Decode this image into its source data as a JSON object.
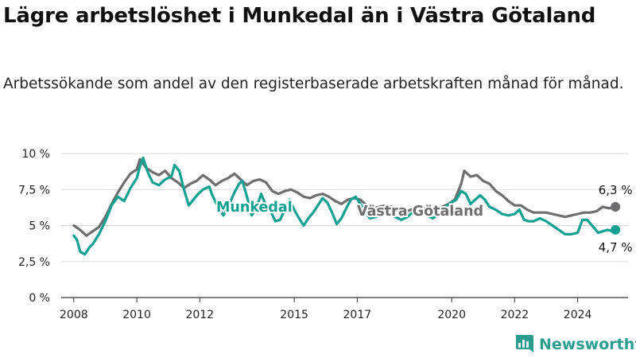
{
  "header": {
    "title": "Lägre arbetslöshet i Munkedal än i Västra Götaland",
    "subtitle": "Arbetssökande som andel av den registerbaserade arbetskraften månad för månad."
  },
  "brand": {
    "name": "Newsworthy",
    "icon": "bar-chart-icon",
    "color": "#2a9d8f"
  },
  "chart_data": {
    "type": "line",
    "ylim": [
      0,
      10
    ],
    "y_ticks": [
      {
        "value": 0,
        "label": "0 %"
      },
      {
        "value": 2.5,
        "label": "2,5 %"
      },
      {
        "value": 5,
        "label": "5 %"
      },
      {
        "value": 7.5,
        "label": "7,5 %"
      },
      {
        "value": 10,
        "label": "10 %"
      }
    ],
    "xlim": [
      2007.6,
      2025.6
    ],
    "x_ticks": [
      {
        "value": 2008,
        "label": "2008"
      },
      {
        "value": 2010,
        "label": "2010"
      },
      {
        "value": 2012,
        "label": "2012"
      },
      {
        "value": 2015,
        "label": "2015"
      },
      {
        "value": 2017,
        "label": "2017"
      },
      {
        "value": 2020,
        "label": "2020"
      },
      {
        "value": 2022,
        "label": "2022"
      },
      {
        "value": 2024,
        "label": "2024"
      }
    ],
    "grid": true,
    "series": [
      {
        "name": "Västra Götaland",
        "color": "#6e6e70",
        "end_label": "6,3 %",
        "points": [
          [
            2008.0,
            5.0
          ],
          [
            2008.2,
            4.7
          ],
          [
            2008.4,
            4.3
          ],
          [
            2008.6,
            4.6
          ],
          [
            2008.8,
            4.9
          ],
          [
            2009.0,
            5.6
          ],
          [
            2009.2,
            6.5
          ],
          [
            2009.4,
            7.3
          ],
          [
            2009.6,
            8.0
          ],
          [
            2009.8,
            8.6
          ],
          [
            2010.0,
            8.9
          ],
          [
            2010.1,
            9.6
          ],
          [
            2010.3,
            9.0
          ],
          [
            2010.5,
            8.7
          ],
          [
            2010.7,
            8.5
          ],
          [
            2010.9,
            8.8
          ],
          [
            2011.1,
            8.3
          ],
          [
            2011.3,
            8.0
          ],
          [
            2011.5,
            7.6
          ],
          [
            2011.7,
            7.9
          ],
          [
            2011.9,
            8.1
          ],
          [
            2012.1,
            8.5
          ],
          [
            2012.3,
            8.2
          ],
          [
            2012.5,
            7.8
          ],
          [
            2012.7,
            8.1
          ],
          [
            2012.9,
            8.3
          ],
          [
            2013.1,
            8.6
          ],
          [
            2013.3,
            8.2
          ],
          [
            2013.5,
            7.8
          ],
          [
            2013.7,
            8.1
          ],
          [
            2013.9,
            8.2
          ],
          [
            2014.1,
            8.0
          ],
          [
            2014.3,
            7.4
          ],
          [
            2014.5,
            7.2
          ],
          [
            2014.7,
            7.4
          ],
          [
            2014.9,
            7.5
          ],
          [
            2015.1,
            7.3
          ],
          [
            2015.3,
            7.0
          ],
          [
            2015.5,
            6.9
          ],
          [
            2015.7,
            7.1
          ],
          [
            2015.9,
            7.2
          ],
          [
            2016.1,
            7.0
          ],
          [
            2016.3,
            6.7
          ],
          [
            2016.5,
            6.5
          ],
          [
            2016.7,
            6.8
          ],
          [
            2016.9,
            6.9
          ],
          [
            2017.1,
            6.8
          ],
          [
            2017.3,
            6.4
          ],
          [
            2017.5,
            6.2
          ],
          [
            2017.7,
            6.3
          ],
          [
            2017.9,
            6.4
          ],
          [
            2018.1,
            6.3
          ],
          [
            2018.3,
            6.0
          ],
          [
            2018.5,
            5.9
          ],
          [
            2018.7,
            6.1
          ],
          [
            2018.9,
            6.2
          ],
          [
            2019.1,
            6.2
          ],
          [
            2019.3,
            6.2
          ],
          [
            2019.5,
            6.1
          ],
          [
            2019.7,
            6.3
          ],
          [
            2019.9,
            6.5
          ],
          [
            2020.1,
            6.8
          ],
          [
            2020.3,
            7.9
          ],
          [
            2020.4,
            8.8
          ],
          [
            2020.6,
            8.4
          ],
          [
            2020.8,
            8.5
          ],
          [
            2021.0,
            8.1
          ],
          [
            2021.2,
            7.9
          ],
          [
            2021.4,
            7.4
          ],
          [
            2021.6,
            7.1
          ],
          [
            2021.8,
            6.7
          ],
          [
            2022.0,
            6.4
          ],
          [
            2022.2,
            6.4
          ],
          [
            2022.4,
            6.1
          ],
          [
            2022.6,
            5.9
          ],
          [
            2022.8,
            5.9
          ],
          [
            2023.0,
            5.9
          ],
          [
            2023.2,
            5.8
          ],
          [
            2023.4,
            5.7
          ],
          [
            2023.6,
            5.6
          ],
          [
            2023.8,
            5.7
          ],
          [
            2024.0,
            5.8
          ],
          [
            2024.2,
            5.9
          ],
          [
            2024.4,
            5.9
          ],
          [
            2024.6,
            6.0
          ],
          [
            2024.8,
            6.3
          ],
          [
            2025.0,
            6.2
          ],
          [
            2025.2,
            6.3
          ]
        ]
      },
      {
        "name": "Munkedal",
        "color": "#14a192",
        "end_label": "4,7 %",
        "points": [
          [
            2008.0,
            4.3
          ],
          [
            2008.1,
            4.0
          ],
          [
            2008.2,
            3.2
          ],
          [
            2008.35,
            3.0
          ],
          [
            2008.5,
            3.5
          ],
          [
            2008.6,
            3.7
          ],
          [
            2008.8,
            4.4
          ],
          [
            2009.0,
            5.3
          ],
          [
            2009.2,
            6.4
          ],
          [
            2009.4,
            7.0
          ],
          [
            2009.6,
            6.7
          ],
          [
            2009.8,
            7.6
          ],
          [
            2010.0,
            8.3
          ],
          [
            2010.1,
            9.1
          ],
          [
            2010.2,
            9.7
          ],
          [
            2010.35,
            8.7
          ],
          [
            2010.5,
            8.0
          ],
          [
            2010.7,
            7.8
          ],
          [
            2010.9,
            8.2
          ],
          [
            2011.1,
            8.4
          ],
          [
            2011.2,
            9.2
          ],
          [
            2011.35,
            8.8
          ],
          [
            2011.5,
            7.5
          ],
          [
            2011.65,
            6.4
          ],
          [
            2011.8,
            6.8
          ],
          [
            2011.95,
            7.2
          ],
          [
            2012.1,
            7.5
          ],
          [
            2012.3,
            7.7
          ],
          [
            2012.4,
            7.1
          ],
          [
            2012.6,
            6.2
          ],
          [
            2012.75,
            5.7
          ],
          [
            2012.9,
            6.3
          ],
          [
            2013.1,
            7.3
          ],
          [
            2013.25,
            7.9
          ],
          [
            2013.35,
            8.1
          ],
          [
            2013.5,
            7.0
          ],
          [
            2013.65,
            5.7
          ],
          [
            2013.8,
            6.2
          ],
          [
            2013.95,
            7.2
          ],
          [
            2014.1,
            6.4
          ],
          [
            2014.25,
            6.0
          ],
          [
            2014.4,
            5.3
          ],
          [
            2014.55,
            5.4
          ],
          [
            2014.7,
            6.1
          ],
          [
            2014.85,
            6.8
          ],
          [
            2015.0,
            6.1
          ],
          [
            2015.15,
            5.5
          ],
          [
            2015.3,
            5.0
          ],
          [
            2015.45,
            5.5
          ],
          [
            2015.6,
            5.9
          ],
          [
            2015.75,
            6.4
          ],
          [
            2015.9,
            6.9
          ],
          [
            2016.05,
            6.6
          ],
          [
            2016.2,
            5.9
          ],
          [
            2016.35,
            5.1
          ],
          [
            2016.5,
            5.5
          ],
          [
            2016.65,
            6.2
          ],
          [
            2016.8,
            6.8
          ],
          [
            2016.95,
            7.0
          ],
          [
            2017.1,
            6.5
          ],
          [
            2017.25,
            6.0
          ],
          [
            2017.4,
            5.5
          ],
          [
            2017.6,
            5.6
          ],
          [
            2017.8,
            6.0
          ],
          [
            2018.0,
            5.9
          ],
          [
            2018.2,
            5.6
          ],
          [
            2018.4,
            5.4
          ],
          [
            2018.6,
            5.6
          ],
          [
            2018.8,
            6.0
          ],
          [
            2019.0,
            5.9
          ],
          [
            2019.2,
            5.7
          ],
          [
            2019.4,
            5.5
          ],
          [
            2019.6,
            5.8
          ],
          [
            2019.8,
            6.3
          ],
          [
            2020.0,
            6.6
          ],
          [
            2020.15,
            6.8
          ],
          [
            2020.3,
            7.4
          ],
          [
            2020.45,
            7.2
          ],
          [
            2020.6,
            6.5
          ],
          [
            2020.75,
            6.8
          ],
          [
            2020.9,
            7.1
          ],
          [
            2021.05,
            6.8
          ],
          [
            2021.2,
            6.3
          ],
          [
            2021.4,
            6.1
          ],
          [
            2021.6,
            5.8
          ],
          [
            2021.8,
            5.7
          ],
          [
            2022.0,
            5.8
          ],
          [
            2022.15,
            6.1
          ],
          [
            2022.3,
            5.4
          ],
          [
            2022.45,
            5.3
          ],
          [
            2022.6,
            5.3
          ],
          [
            2022.8,
            5.5
          ],
          [
            2023.0,
            5.3
          ],
          [
            2023.2,
            5.0
          ],
          [
            2023.4,
            4.7
          ],
          [
            2023.6,
            4.4
          ],
          [
            2023.8,
            4.4
          ],
          [
            2024.0,
            4.5
          ],
          [
            2024.15,
            5.4
          ],
          [
            2024.3,
            5.4
          ],
          [
            2024.5,
            4.9
          ],
          [
            2024.65,
            4.5
          ],
          [
            2024.8,
            4.6
          ],
          [
            2024.95,
            4.7
          ],
          [
            2025.1,
            4.6
          ],
          [
            2025.2,
            4.7
          ]
        ]
      }
    ]
  }
}
